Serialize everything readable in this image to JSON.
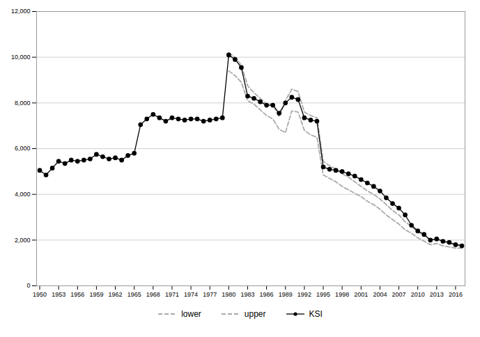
{
  "chart_data": {
    "type": "line",
    "x": [
      1950,
      1951,
      1952,
      1953,
      1954,
      1955,
      1956,
      1957,
      1958,
      1959,
      1960,
      1961,
      1962,
      1963,
      1964,
      1965,
      1966,
      1967,
      1968,
      1969,
      1970,
      1971,
      1972,
      1973,
      1974,
      1975,
      1976,
      1977,
      1978,
      1979,
      1980,
      1981,
      1982,
      1983,
      1984,
      1985,
      1986,
      1987,
      1988,
      1989,
      1990,
      1991,
      1992,
      1993,
      1994,
      1995,
      1996,
      1997,
      1998,
      1999,
      2000,
      2001,
      2002,
      2003,
      2004,
      2005,
      2006,
      2007,
      2008,
      2009,
      2010,
      2011,
      2012,
      2013,
      2014,
      2015,
      2016,
      2017
    ],
    "series": [
      {
        "name": "lower",
        "color": "#aaaaaa",
        "line_style": "dashed",
        "values": [
          null,
          null,
          null,
          null,
          null,
          null,
          null,
          null,
          null,
          null,
          null,
          null,
          null,
          null,
          null,
          null,
          null,
          null,
          null,
          null,
          null,
          null,
          null,
          null,
          null,
          null,
          null,
          null,
          null,
          null,
          9400,
          9200,
          8900,
          8100,
          7950,
          7700,
          7450,
          7300,
          6850,
          6700,
          7650,
          7600,
          6800,
          6600,
          6500,
          4850,
          4700,
          4550,
          4350,
          4200,
          4050,
          3900,
          3700,
          3550,
          3350,
          3100,
          2900,
          2700,
          2450,
          2300,
          2100,
          1950,
          1800,
          1850,
          1750,
          1700,
          1650,
          1650
        ]
      },
      {
        "name": "upper",
        "color": "#aaaaaa",
        "line_style": "dashed",
        "values": [
          null,
          null,
          null,
          null,
          null,
          null,
          null,
          null,
          null,
          null,
          null,
          null,
          null,
          null,
          null,
          null,
          null,
          null,
          null,
          null,
          null,
          null,
          null,
          null,
          null,
          null,
          null,
          null,
          null,
          null,
          10200,
          10000,
          9650,
          8750,
          8450,
          8200,
          7950,
          7950,
          7400,
          8100,
          8600,
          8500,
          7600,
          7450,
          7350,
          5450,
          5250,
          5100,
          4900,
          4750,
          4550,
          4350,
          4150,
          4000,
          3800,
          3550,
          3300,
          3100,
          2800,
          2600,
          2350,
          2200,
          2000,
          2050,
          1950,
          1850,
          1800,
          1800
        ]
      },
      {
        "name": "KSI",
        "color": "#000000",
        "line_style": "solid",
        "marker": "circle",
        "values": [
          5050,
          4850,
          5150,
          5450,
          5350,
          5500,
          5450,
          5500,
          5550,
          5750,
          5650,
          5550,
          5600,
          5500,
          5700,
          5800,
          7050,
          7300,
          7500,
          7350,
          7200,
          7350,
          7300,
          7250,
          7300,
          7300,
          7200,
          7250,
          7300,
          7350,
          10100,
          9900,
          9550,
          8300,
          8200,
          8050,
          7900,
          7900,
          7550,
          8000,
          8250,
          8150,
          7350,
          7250,
          7200,
          5200,
          5100,
          5050,
          5000,
          4900,
          4800,
          4650,
          4500,
          4350,
          4150,
          3850,
          3600,
          3400,
          3100,
          2650,
          2400,
          2250,
          2000,
          2050,
          1950,
          1900,
          1800,
          1750
        ]
      }
    ],
    "xlim": [
      1949.5,
      2017.5
    ],
    "xticks": [
      1950,
      1953,
      1956,
      1959,
      1962,
      1965,
      1968,
      1971,
      1974,
      1977,
      1980,
      1983,
      1986,
      1989,
      1992,
      1995,
      1998,
      2001,
      2004,
      2007,
      2010,
      2013,
      2016
    ],
    "ylim": [
      0,
      12000
    ],
    "yticks": [
      0,
      {
        "value": 2000,
        "label": "2,000"
      },
      {
        "value": 4000,
        "label": "4,000"
      },
      {
        "value": 6000,
        "label": "6,000"
      },
      {
        "value": 8000,
        "label": "8,000"
      },
      {
        "value": 10000,
        "label": "10,000"
      },
      {
        "value": 12000,
        "label": "12,000"
      }
    ],
    "grid": "y",
    "legend": "bottom"
  }
}
